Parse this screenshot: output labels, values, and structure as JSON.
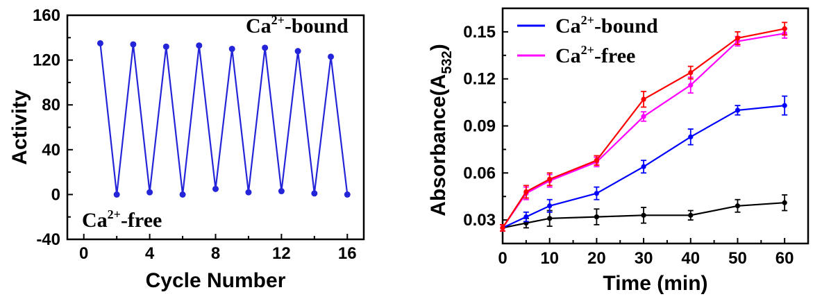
{
  "chart_data": [
    {
      "type": "line",
      "xlabel": "Cycle Number",
      "ylabel": "Activity",
      "xlim": [
        -1,
        17
      ],
      "ylim": [
        -40,
        160
      ],
      "xticks": [
        "0",
        "4",
        "8",
        "12",
        "16"
      ],
      "yticks": [
        "-40",
        "0",
        "40",
        "80",
        "120",
        "160"
      ],
      "grid": false,
      "annotations": [
        {
          "base": "Ca",
          "sup": "2+",
          "rest": "-bound",
          "position": "top-right"
        },
        {
          "base": "Ca",
          "sup": "2+",
          "rest": "-free",
          "position": "bottom-left"
        }
      ],
      "series": [
        {
          "color": "#2424d8",
          "x": [
            1,
            2,
            3,
            4,
            5,
            6,
            7,
            8,
            9,
            10,
            11,
            12,
            13,
            14,
            15,
            16
          ],
          "y": [
            135,
            0,
            134,
            2,
            132,
            0,
            133,
            5,
            130,
            2,
            131,
            3,
            128,
            1,
            123,
            0
          ]
        }
      ]
    },
    {
      "type": "line",
      "xlabel": "Time (min)",
      "ylabel": "Absorbance(A",
      "ylabel_sub": "532",
      "ylabel_close": ")",
      "xlim": [
        0,
        65
      ],
      "ylim": [
        0.015,
        0.165
      ],
      "xticks": [
        "0",
        "10",
        "20",
        "30",
        "40",
        "50",
        "60"
      ],
      "yticks": [
        "0.03",
        "0.06",
        "0.09",
        "0.12",
        "0.15"
      ],
      "grid": false,
      "legend": {
        "position": "top-left",
        "entries": [
          {
            "base": "Ca",
            "sup": "2+",
            "rest": "-bound",
            "color": "#0000ff"
          },
          {
            "base": "Ca",
            "sup": "2+",
            "rest": "-free",
            "color": "#ff00ff"
          }
        ]
      },
      "x": [
        0,
        5,
        10,
        20,
        30,
        40,
        50,
        60
      ],
      "series": [
        {
          "color": "#ff0000",
          "values": [
            0.025,
            0.048,
            0.056,
            0.068,
            0.107,
            0.124,
            0.146,
            0.152
          ],
          "errors": [
            0.002,
            0.004,
            0.004,
            0.003,
            0.005,
            0.004,
            0.004,
            0.004
          ]
        },
        {
          "color": "#ff00ff",
          "values": [
            0.025,
            0.047,
            0.055,
            0.067,
            0.096,
            0.116,
            0.144,
            0.149
          ],
          "errors": [
            0.002,
            0.004,
            0.004,
            0.003,
            0.003,
            0.005,
            0.003,
            0.003
          ]
        },
        {
          "color": "#0000ff",
          "values": [
            0.025,
            0.032,
            0.039,
            0.047,
            0.064,
            0.083,
            0.1,
            0.103
          ],
          "errors": [
            0.002,
            0.003,
            0.004,
            0.004,
            0.004,
            0.005,
            0.003,
            0.006
          ]
        },
        {
          "color": "#000000",
          "values": [
            0.025,
            0.028,
            0.031,
            0.032,
            0.033,
            0.033,
            0.039,
            0.041
          ],
          "errors": [
            0.002,
            0.003,
            0.005,
            0.005,
            0.005,
            0.003,
            0.004,
            0.005
          ]
        }
      ]
    }
  ]
}
